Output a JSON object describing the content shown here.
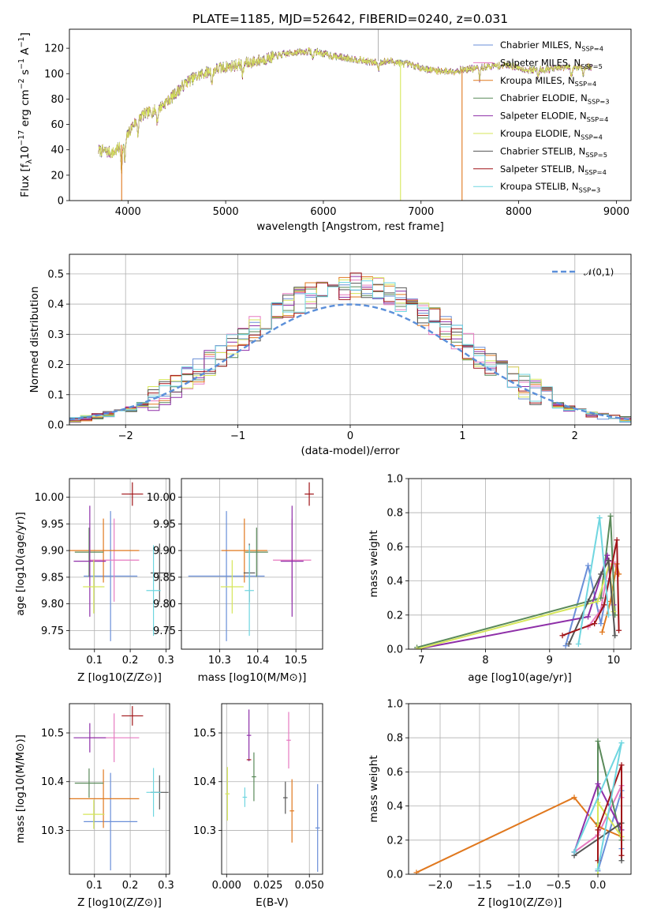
{
  "colors": {
    "chabrier_miles": "#6a8fd8",
    "salpeter_miles": "#e67ac1",
    "kroupa_miles": "#e0781e",
    "chabrier_elodie": "#5a8a5a",
    "salpeter_elodie": "#8e2fa8",
    "kroupa_elodie": "#d6e65a",
    "chabrier_stelib": "#555555",
    "salpeter_stelib": "#a01418",
    "kroupa_stelib": "#6fd6e0",
    "normal_curve": "#5b8fd9",
    "grid": "#b0b0b0"
  },
  "chart_data": [
    {
      "id": "spectrum",
      "type": "line",
      "title": "PLATE=1185, MJD=52642, FIBERID=0240, z=0.031",
      "xlabel": "wavelength [Angstrom, rest frame]",
      "ylabel": "Flux [f_λ10^-17 erg cm^-2 s^-1 A^-1]",
      "xlim": [
        3400,
        9150
      ],
      "ylim": [
        0,
        135
      ],
      "xticks": [
        "4000",
        "5000",
        "6000",
        "7000",
        "8000",
        "9000"
      ],
      "yticks": [
        "0",
        "20",
        "40",
        "60",
        "80",
        "100",
        "120"
      ],
      "grid": false,
      "legend_position": "top-right",
      "legend": [
        "Chabrier MILES, N_SSP=4",
        "Salpeter MILES, N_SSP=5",
        "Kroupa MILES, N_SSP=4",
        "Chabrier ELODIE, N_SSP=3",
        "Salpeter ELODIE, N_SSP=4",
        "Kroupa ELODIE, N_SSP=4",
        "Chabrier STELIB, N_SSP=5",
        "Salpeter STELIB, N_SSP=4",
        "Kroupa STELIB, N_SSP=3"
      ],
      "continuum": {
        "x": [
          3700,
          3850,
          3950,
          4050,
          4150,
          4300,
          4450,
          4600,
          4750,
          4900,
          5100,
          5300,
          5500,
          5700,
          5900,
          6100,
          6300,
          6500,
          6700,
          6900,
          7100,
          7300,
          7500,
          7700,
          7900,
          8100,
          8300,
          8500,
          8700,
          8750
        ],
        "y": [
          40,
          38,
          45,
          60,
          68,
          72,
          82,
          94,
          100,
          104,
          107,
          110,
          114,
          117,
          118,
          114,
          112,
          109,
          110,
          107,
          103,
          102,
          104,
          106,
          107,
          103,
          104,
          105,
          106,
          105
        ]
      },
      "drops": [
        {
          "x": 3935,
          "series": "kroupa_miles"
        },
        {
          "x": 6790,
          "series": "kroupa_elodie"
        },
        {
          "x": 7420,
          "series": "kroupa_miles"
        }
      ]
    },
    {
      "id": "residuals",
      "type": "histogram",
      "xlabel": "(data-model)/error",
      "ylabel": "Normed distribution",
      "xlim": [
        -2.5,
        2.5
      ],
      "ylim": [
        0,
        0.565
      ],
      "xticks": [
        "−2",
        "−1",
        "0",
        "1",
        "2"
      ],
      "yticks": [
        "0.0",
        "0.1",
        "0.2",
        "0.3",
        "0.4",
        "0.5"
      ],
      "grid": true,
      "legend_position": "top-right",
      "legend": [
        "𝒩(0,1)"
      ],
      "bin_width": 0.1,
      "curve": {
        "name": "𝒩(0,1)",
        "mean": 0,
        "sigma": 1,
        "style": "dashed"
      }
    },
    {
      "id": "age_vs_Z",
      "type": "scatter",
      "xlabel": "Z [log10(Z/Z⊙)]",
      "ylabel": "age  [log10(age/yr)]",
      "xlim": [
        0.03,
        0.31
      ],
      "ylim": [
        9.715,
        10.035
      ],
      "xticks": [
        "0.1",
        "0.2",
        "0.3"
      ],
      "yticks": [
        "9.75",
        "9.80",
        "9.85",
        "9.90",
        "9.95",
        "10.00"
      ],
      "grid": true,
      "points": [
        {
          "series": "chabrier_miles",
          "x": 0.145,
          "y": 9.852,
          "xerr": 0.075,
          "yerr": 0.122
        },
        {
          "series": "salpeter_miles",
          "x": 0.155,
          "y": 9.882,
          "xerr": 0.07,
          "yerr": 0.078
        },
        {
          "series": "kroupa_miles",
          "x": 0.125,
          "y": 9.9,
          "xerr": 0.1,
          "yerr": 0.06
        },
        {
          "series": "chabrier_elodie",
          "x": 0.085,
          "y": 9.897,
          "xerr": 0.04,
          "yerr": 0.046
        },
        {
          "series": "salpeter_elodie",
          "x": 0.087,
          "y": 9.88,
          "xerr": 0.045,
          "yerr": 0.104
        },
        {
          "series": "kroupa_elodie",
          "x": 0.098,
          "y": 9.832,
          "xerr": 0.03,
          "yerr": 0.05
        },
        {
          "series": "chabrier_stelib",
          "x": 0.282,
          "y": 9.858,
          "xerr": 0.025,
          "yerr": 0.055
        },
        {
          "series": "salpeter_stelib",
          "x": 0.206,
          "y": 10.006,
          "xerr": 0.03,
          "yerr": 0.022
        },
        {
          "series": "kroupa_stelib",
          "x": 0.265,
          "y": 9.825,
          "xerr": 0.02,
          "yerr": 0.085
        }
      ]
    },
    {
      "id": "age_vs_mass",
      "type": "scatter",
      "xlabel": "mass [log10(M/M⊙)]",
      "ylabel": "",
      "xlim": [
        10.2,
        10.57
      ],
      "ylim": [
        9.715,
        10.035
      ],
      "xticks": [
        "10.3",
        "10.4",
        "10.5"
      ],
      "yticks": [
        "9.75",
        "9.80",
        "9.85",
        "9.90",
        "9.95",
        "10.00"
      ],
      "grid": true,
      "points": [
        {
          "series": "chabrier_miles",
          "x": 10.318,
          "y": 9.852,
          "xerr": 0.1,
          "yerr": 0.122
        },
        {
          "series": "salpeter_miles",
          "x": 10.49,
          "y": 9.882,
          "xerr": 0.05,
          "yerr": 0.078
        },
        {
          "series": "kroupa_miles",
          "x": 10.365,
          "y": 9.9,
          "xerr": 0.06,
          "yerr": 0.06
        },
        {
          "series": "chabrier_elodie",
          "x": 10.397,
          "y": 9.897,
          "xerr": 0.03,
          "yerr": 0.046
        },
        {
          "series": "salpeter_elodie",
          "x": 10.49,
          "y": 9.88,
          "xerr": 0.03,
          "yerr": 0.104
        },
        {
          "series": "kroupa_elodie",
          "x": 10.333,
          "y": 9.832,
          "xerr": 0.03,
          "yerr": 0.05
        },
        {
          "series": "chabrier_stelib",
          "x": 10.378,
          "y": 9.858,
          "xerr": 0.015,
          "yerr": 0.055
        },
        {
          "series": "salpeter_stelib",
          "x": 10.535,
          "y": 10.006,
          "xerr": 0.012,
          "yerr": 0.022
        },
        {
          "series": "kroupa_stelib",
          "x": 10.378,
          "y": 9.825,
          "xerr": 0.012,
          "yerr": 0.085
        }
      ]
    },
    {
      "id": "weights_vs_age",
      "type": "line",
      "xlabel": "age  [log10(age/yr)]",
      "ylabel": "mass weight",
      "xlim": [
        6.8,
        10.27
      ],
      "ylim": [
        0,
        1
      ],
      "xticks": [
        "7",
        "8",
        "9",
        "10"
      ],
      "yticks": [
        "0.0",
        "0.2",
        "0.4",
        "0.6",
        "0.8",
        "1.0"
      ],
      "grid": true,
      "series": [
        {
          "series": "chabrier_miles",
          "x": [
            9.25,
            9.6,
            9.8,
            9.92
          ],
          "y": [
            0.02,
            0.49,
            0.15,
            0.4
          ]
        },
        {
          "series": "salpeter_miles",
          "x": [
            9.6,
            9.8,
            9.93,
            10.02,
            10.05
          ],
          "y": [
            0.13,
            0.23,
            0.52,
            0.5,
            0.45
          ]
        },
        {
          "series": "kroupa_miles",
          "x": [
            9.82,
            9.95,
            10.05,
            10.08
          ],
          "y": [
            0.1,
            0.28,
            0.5,
            0.44
          ]
        },
        {
          "series": "chabrier_elodie",
          "x": [
            6.93,
            9.8,
            9.95,
            10.02
          ],
          "y": [
            0.01,
            0.3,
            0.78,
            0.2
          ]
        },
        {
          "series": "salpeter_elodie",
          "x": [
            6.93,
            9.6,
            9.9,
            10.0
          ],
          "y": [
            0.0,
            0.19,
            0.55,
            0.26
          ]
        },
        {
          "series": "kroupa_elodie",
          "x": [
            6.93,
            9.75,
            9.93,
            10.0
          ],
          "y": [
            0.0,
            0.28,
            0.5,
            0.22
          ]
        },
        {
          "series": "chabrier_stelib",
          "x": [
            9.3,
            9.6,
            9.8,
            9.92,
            10.02
          ],
          "y": [
            0.03,
            0.28,
            0.44,
            0.52,
            0.08
          ]
        },
        {
          "series": "salpeter_stelib",
          "x": [
            9.2,
            9.7,
            9.85,
            10.05,
            10.08
          ],
          "y": [
            0.08,
            0.15,
            0.26,
            0.64,
            0.11
          ]
        },
        {
          "series": "kroupa_stelib",
          "x": [
            9.45,
            9.78,
            9.92
          ],
          "y": [
            0.03,
            0.77,
            0.2
          ]
        }
      ]
    },
    {
      "id": "mass_vs_Z",
      "type": "scatter",
      "xlabel": "Z [log10(Z/Z⊙)]",
      "ylabel": "mass [log10(M/M⊙)]",
      "xlim": [
        0.03,
        0.31
      ],
      "ylim": [
        10.21,
        10.56
      ],
      "xticks": [
        "0.1",
        "0.2",
        "0.3"
      ],
      "yticks": [
        "10.3",
        "10.4",
        "10.5"
      ],
      "grid": true,
      "points": [
        {
          "series": "chabrier_miles",
          "x": 0.145,
          "y": 10.318,
          "xerr": 0.075,
          "yerr": 0.1
        },
        {
          "series": "salpeter_miles",
          "x": 0.155,
          "y": 10.49,
          "xerr": 0.07,
          "yerr": 0.05
        },
        {
          "series": "kroupa_miles",
          "x": 0.125,
          "y": 10.365,
          "xerr": 0.1,
          "yerr": 0.06
        },
        {
          "series": "chabrier_elodie",
          "x": 0.085,
          "y": 10.397,
          "xerr": 0.04,
          "yerr": 0.03
        },
        {
          "series": "salpeter_elodie",
          "x": 0.087,
          "y": 10.49,
          "xerr": 0.045,
          "yerr": 0.03
        },
        {
          "series": "kroupa_elodie",
          "x": 0.098,
          "y": 10.333,
          "xerr": 0.03,
          "yerr": 0.03
        },
        {
          "series": "chabrier_stelib",
          "x": 0.282,
          "y": 10.378,
          "xerr": 0.025,
          "yerr": 0.035
        },
        {
          "series": "salpeter_stelib",
          "x": 0.206,
          "y": 10.535,
          "xerr": 0.03,
          "yerr": 0.02
        },
        {
          "series": "kroupa_stelib",
          "x": 0.265,
          "y": 10.378,
          "xerr": 0.02,
          "yerr": 0.05
        }
      ]
    },
    {
      "id": "mass_vs_ebv",
      "type": "scatter",
      "xlabel": "E(B-V)",
      "ylabel": "",
      "xlim": [
        -0.003,
        0.058
      ],
      "ylim": [
        10.21,
        10.56
      ],
      "xticks": [
        "0.000",
        "0.025",
        "0.050"
      ],
      "yticks": [
        "10.3",
        "10.4",
        "10.5"
      ],
      "grid": true,
      "points": [
        {
          "series": "chabrier_miles",
          "x": 0.055,
          "y": 10.305,
          "xerr": 0,
          "yerr": 0.09
        },
        {
          "series": "salpeter_miles",
          "x": 0.0375,
          "y": 10.485,
          "xerr": 0,
          "yerr": 0.058
        },
        {
          "series": "kroupa_miles",
          "x": 0.0395,
          "y": 10.34,
          "xerr": 0,
          "yerr": 0.065
        },
        {
          "series": "chabrier_elodie",
          "x": 0.0165,
          "y": 10.41,
          "xerr": 0,
          "yerr": 0.05
        },
        {
          "series": "salpeter_elodie",
          "x": 0.0135,
          "y": 10.495,
          "xerr": 0,
          "yerr": 0.053
        },
        {
          "series": "kroupa_elodie",
          "x": 0.0005,
          "y": 10.375,
          "xerr": 0,
          "yerr": 0.055
        },
        {
          "series": "chabrier_stelib",
          "x": 0.0355,
          "y": 10.367,
          "xerr": 0,
          "yerr": 0.033
        },
        {
          "series": "salpeter_stelib",
          "x": 0.0135,
          "y": 10.445,
          "xerr": 0,
          "yerr": 0.0
        },
        {
          "series": "kroupa_stelib",
          "x": 0.011,
          "y": 10.368,
          "xerr": 0,
          "yerr": 0.02
        }
      ]
    },
    {
      "id": "weights_vs_Z",
      "type": "line",
      "xlabel": "Z [log10(Z/Z⊙)]",
      "ylabel": "mass weight",
      "xlim": [
        -2.4,
        0.42
      ],
      "ylim": [
        0,
        1
      ],
      "xticks": [
        "−2.0",
        "−1.5",
        "−1.0",
        "−0.5",
        "0.0"
      ],
      "yticks": [
        "0.0",
        "0.2",
        "0.4",
        "0.6",
        "0.8",
        "1.0"
      ],
      "grid": true,
      "series": [
        {
          "series": "chabrier_miles",
          "x": [
            0.0,
            0.3,
            0.3
          ],
          "y": [
            0.02,
            0.49,
            0.15
          ]
        },
        {
          "series": "salpeter_miles",
          "x": [
            -0.3,
            0.0,
            0.3,
            0.3
          ],
          "y": [
            0.13,
            0.23,
            0.52,
            0.45
          ]
        },
        {
          "series": "kroupa_miles",
          "x": [
            -2.3,
            -0.3,
            0.0,
            0.3
          ],
          "y": [
            0.01,
            0.45,
            0.28,
            0.22
          ]
        },
        {
          "series": "chabrier_elodie",
          "x": [
            0.0,
            0.0,
            0.3
          ],
          "y": [
            0.3,
            0.78,
            0.2
          ]
        },
        {
          "series": "salpeter_elodie",
          "x": [
            -0.3,
            0.0,
            0.3
          ],
          "y": [
            0.13,
            0.53,
            0.26
          ]
        },
        {
          "series": "kroupa_elodie",
          "x": [
            0.0,
            0.0,
            0.3
          ],
          "y": [
            0.0,
            0.42,
            0.22
          ]
        },
        {
          "series": "chabrier_stelib",
          "x": [
            -0.3,
            0.3,
            0.3
          ],
          "y": [
            0.11,
            0.3,
            0.08
          ]
        },
        {
          "series": "salpeter_stelib",
          "x": [
            0.0,
            0.0,
            0.3,
            0.3
          ],
          "y": [
            0.08,
            0.26,
            0.64,
            0.11
          ]
        },
        {
          "series": "kroupa_stelib",
          "x": [
            -0.3,
            0.3,
            0.0
          ],
          "y": [
            0.13,
            0.77,
            0.03
          ]
        }
      ]
    }
  ]
}
